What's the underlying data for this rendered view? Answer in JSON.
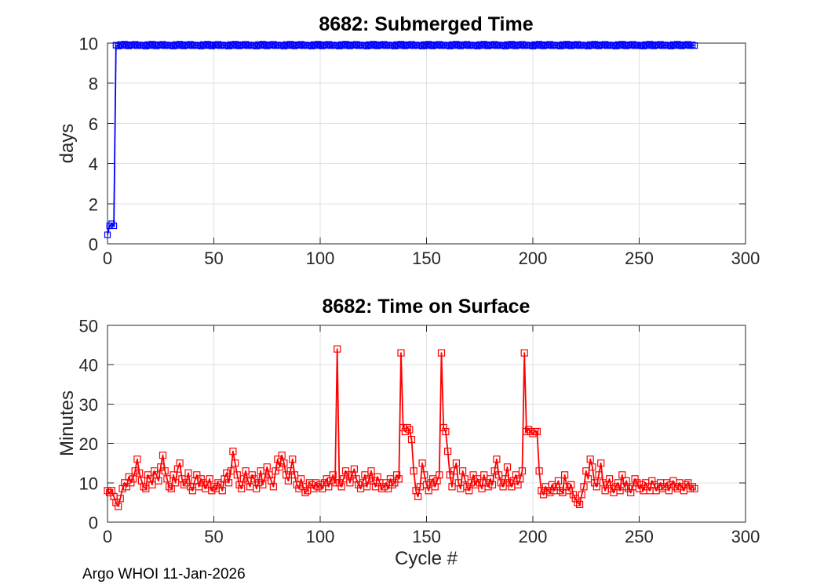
{
  "figure": {
    "footer": "Argo WHOI 11-Jan-2026",
    "background": "#ffffff"
  },
  "styles": {
    "axis_color": "#262626",
    "grid_color": "#e0e0e0",
    "text_color": "#262626",
    "blue": "#0000ff",
    "red": "#ff0000"
  },
  "chart_data": [
    {
      "id": "submerged-time",
      "type": "line",
      "title": "8682: Submerged Time",
      "xlabel": "",
      "ylabel": "days",
      "xlim": [
        0,
        300
      ],
      "ylim": [
        0,
        10
      ],
      "xticks": [
        0,
        50,
        100,
        150,
        200,
        250,
        300
      ],
      "yticks": [
        0,
        2,
        4,
        6,
        8,
        10
      ],
      "grid": true,
      "legend": "none",
      "line_color": "#0000ff",
      "marker": "square",
      "x_start": 0,
      "y": [
        0.45,
        0.9,
        1.0,
        0.9,
        9.9,
        9.85,
        9.93,
        9.88,
        9.95,
        9.9,
        9.86,
        9.92,
        9.89,
        9.94,
        9.87,
        9.91,
        9.88,
        9.9,
        9.85,
        9.93,
        9.88,
        9.95,
        9.9,
        9.86,
        9.92,
        9.89,
        9.94,
        9.87,
        9.91,
        9.88,
        9.9,
        9.85,
        9.93,
        9.88,
        9.95,
        9.9,
        9.86,
        9.92,
        9.89,
        9.94,
        9.87,
        9.91,
        9.88,
        9.9,
        9.85,
        9.93,
        9.88,
        9.95,
        9.9,
        9.86,
        9.92,
        9.89,
        9.94,
        9.87,
        9.91,
        9.88,
        9.9,
        9.85,
        9.93,
        9.88,
        9.95,
        9.9,
        9.86,
        9.92,
        9.89,
        9.94,
        9.87,
        9.91,
        9.88,
        9.9,
        9.85,
        9.93,
        9.88,
        9.95,
        9.9,
        9.86,
        9.92,
        9.89,
        9.94,
        9.87,
        9.91,
        9.88,
        9.9,
        9.85,
        9.93,
        9.88,
        9.95,
        9.9,
        9.86,
        9.92,
        9.89,
        9.94,
        9.87,
        9.91,
        9.88,
        9.9,
        9.85,
        9.93,
        9.88,
        9.95,
        9.9,
        9.86,
        9.92,
        9.89,
        9.94,
        9.87,
        9.91,
        9.88,
        9.9,
        9.85,
        9.93,
        9.88,
        9.95,
        9.9,
        9.86,
        9.92,
        9.89,
        9.94,
        9.87,
        9.91,
        9.88,
        9.9,
        9.85,
        9.93,
        9.88,
        9.95,
        9.9,
        9.86,
        9.92,
        9.89,
        9.94,
        9.87,
        9.91,
        9.88,
        9.9,
        9.85,
        9.93,
        9.88,
        9.95,
        9.9,
        9.86,
        9.92,
        9.89,
        9.94,
        9.87,
        9.91,
        9.88,
        9.9,
        9.85,
        9.93,
        9.88,
        9.95,
        9.9,
        9.86,
        9.92,
        9.89,
        9.94,
        9.87,
        9.91,
        9.88,
        9.9,
        9.85,
        9.93,
        9.88,
        9.95,
        9.9,
        9.86,
        9.92,
        9.89,
        9.94,
        9.87,
        9.91,
        9.88,
        9.9,
        9.85,
        9.93,
        9.88,
        9.95,
        9.9,
        9.86,
        9.92,
        9.89,
        9.94,
        9.87,
        9.91,
        9.88,
        9.9,
        9.85,
        9.93,
        9.88,
        9.95,
        9.9,
        9.86,
        9.92,
        9.89,
        9.94,
        9.87,
        9.91,
        9.88,
        9.9,
        9.85,
        9.93,
        9.88,
        9.95,
        9.9,
        9.86,
        9.92,
        9.89,
        9.94,
        9.87,
        9.91,
        9.88,
        9.9,
        9.85,
        9.93,
        9.88,
        9.95,
        9.9,
        9.86,
        9.92,
        9.89,
        9.94,
        9.87,
        9.91,
        9.88,
        9.9,
        9.85,
        9.93,
        9.88,
        9.95,
        9.9,
        9.86,
        9.92,
        9.89,
        9.94,
        9.87,
        9.91,
        9.88,
        9.9,
        9.85,
        9.93,
        9.88,
        9.95,
        9.9,
        9.86,
        9.92,
        9.89,
        9.94,
        9.87,
        9.91,
        9.88,
        9.9,
        9.85,
        9.93,
        9.88,
        9.95,
        9.9,
        9.86,
        9.92,
        9.89,
        9.94,
        9.87,
        9.91,
        9.88,
        9.9,
        9.85,
        9.93,
        9.88,
        9.95,
        9.9,
        9.86,
        9.92,
        9.89,
        9.94,
        9.87,
        9.91,
        9.88
      ]
    },
    {
      "id": "time-on-surface",
      "type": "line",
      "title": "8682: Time on Surface",
      "xlabel": "Cycle #",
      "ylabel": "Minutes",
      "xlim": [
        0,
        300
      ],
      "ylim": [
        0,
        50
      ],
      "xticks": [
        0,
        50,
        100,
        150,
        200,
        250,
        300
      ],
      "yticks": [
        0,
        10,
        20,
        30,
        40,
        50
      ],
      "grid": true,
      "legend": "none",
      "line_color": "#ff0000",
      "marker": "square",
      "x_start": 0,
      "y": [
        8,
        7.5,
        8,
        6.5,
        5,
        4,
        6,
        8.5,
        10,
        9,
        11.5,
        10,
        11,
        13,
        16,
        12.5,
        10.5,
        9,
        8.5,
        12,
        11,
        9.5,
        13,
        12,
        10.5,
        14,
        17,
        13,
        11,
        9,
        8.5,
        12,
        10,
        13.5,
        15,
        11,
        9.5,
        10,
        12.5,
        9,
        8,
        10.5,
        12,
        9,
        11,
        10,
        8.5,
        9.5,
        11,
        8,
        9,
        8.5,
        10,
        9.5,
        8,
        11,
        12.5,
        10,
        13,
        18,
        15,
        12,
        9.5,
        8.5,
        11,
        13,
        10.5,
        9,
        12,
        11,
        8.5,
        10,
        13,
        9.5,
        11.5,
        14,
        12,
        10.5,
        9,
        13,
        16,
        14,
        17,
        15,
        12,
        10.5,
        13,
        16,
        12,
        9.5,
        8.5,
        11,
        9,
        7.5,
        8,
        10,
        9.5,
        8.5,
        10,
        9,
        9.5,
        8.5,
        10,
        11,
        9,
        10.5,
        12,
        10,
        44,
        10,
        9,
        11,
        13,
        12,
        10,
        12,
        13.5,
        11,
        9.5,
        8.5,
        10,
        12,
        9,
        11,
        13,
        10.5,
        9,
        11.5,
        10,
        8.5,
        9,
        10,
        8.5,
        11,
        9.5,
        10,
        12,
        11,
        43,
        24,
        23,
        24,
        23.5,
        21,
        13,
        8,
        6.5,
        9,
        15,
        12,
        9.5,
        8,
        10,
        11,
        9,
        10.5,
        12,
        43,
        24,
        23,
        18,
        12,
        9,
        13,
        15,
        10,
        8.5,
        13,
        11,
        9,
        8,
        10,
        12,
        9.5,
        11,
        10,
        8.5,
        12,
        10,
        9,
        11,
        9.5,
        13,
        16,
        12,
        10,
        9,
        11,
        14,
        10,
        9,
        10.5,
        12,
        9.5,
        11,
        13,
        43,
        23,
        23.5,
        23,
        22.5,
        23,
        23,
        13,
        8,
        7,
        9,
        8,
        7.5,
        9.5,
        8,
        9,
        10.5,
        8,
        7.5,
        12,
        9,
        8,
        9.5,
        7,
        6,
        5,
        4.5,
        7,
        9,
        13,
        11,
        16,
        14,
        10,
        9,
        12,
        15,
        10,
        8,
        9.5,
        11,
        8.5,
        7.5,
        9,
        10,
        8,
        12,
        9,
        10.5,
        8.5,
        7.5,
        9,
        11,
        10,
        8.5,
        9.5,
        8,
        10,
        9,
        8,
        10.5,
        9.5,
        8,
        9,
        10,
        8.5,
        9,
        10,
        8,
        9.5,
        10.5,
        9,
        8.5,
        10,
        9,
        8,
        9.5,
        10,
        8.5,
        9,
        8.5
      ]
    }
  ]
}
